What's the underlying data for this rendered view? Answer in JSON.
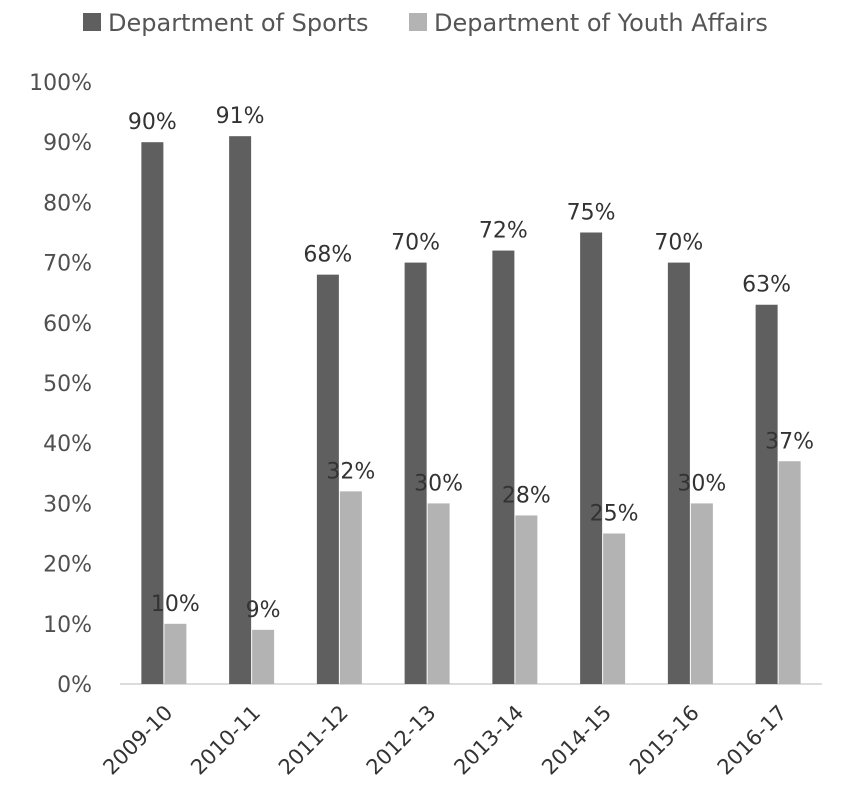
{
  "chart_data": {
    "type": "bar",
    "title": "",
    "xlabel": "",
    "ylabel": "",
    "ylim": [
      0,
      100
    ],
    "yticks": [
      "0%",
      "10%",
      "20%",
      "30%",
      "40%",
      "50%",
      "60%",
      "70%",
      "80%",
      "90%",
      "100%"
    ],
    "categories": [
      "2009-10",
      "2010-11",
      "2011-12",
      "2012-13",
      "2013-14",
      "2014-15",
      "2015-16",
      "2016-17"
    ],
    "series": [
      {
        "name": "Department of Sports",
        "color": "#5f5f5f",
        "values": [
          90,
          91,
          68,
          70,
          72,
          75,
          70,
          63
        ],
        "labels": [
          "90%",
          "91%",
          "68%",
          "70%",
          "72%",
          "75%",
          "70%",
          "63%"
        ]
      },
      {
        "name": "Department of Youth Affairs",
        "color": "#b3b3b3",
        "values": [
          10,
          9,
          32,
          30,
          28,
          25,
          30,
          37
        ],
        "labels": [
          "10%",
          "9%",
          "32%",
          "30%",
          "28%",
          "25%",
          "30%",
          "37%"
        ]
      }
    ],
    "legend": "top",
    "grid": false
  }
}
